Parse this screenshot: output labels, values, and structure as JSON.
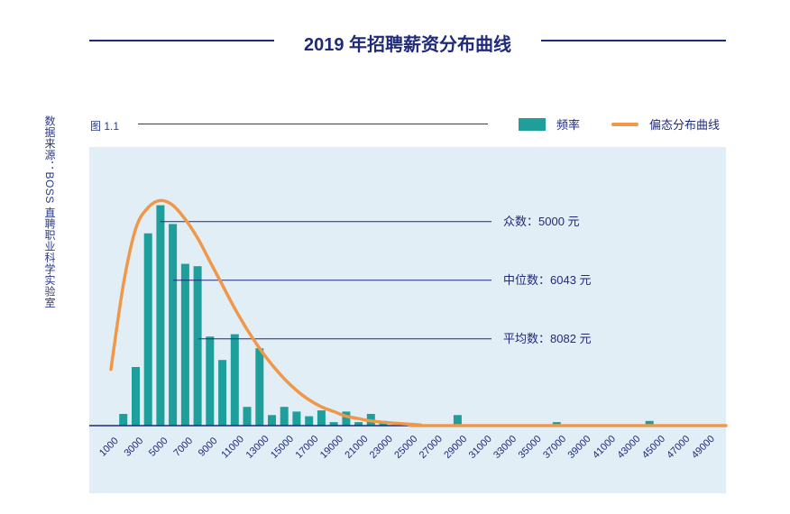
{
  "title": "2019 年招聘薪资分布曲线",
  "source": "数据来源：BOSS 直聘职业科学实验室",
  "figure_label": "图 1.1",
  "legend": {
    "bar_label": "频率",
    "line_label": "偏态分布曲线"
  },
  "colors": {
    "bar": "#1f9f9c",
    "curve": "#f0984a",
    "accent": "#1f2a7a",
    "plot_bg": "#e1eef6"
  },
  "chart_data": {
    "type": "bar",
    "x_tick_labels": [
      "1000",
      "3000",
      "5000",
      "7000",
      "9000",
      "11000",
      "13000",
      "15000",
      "17000",
      "19000",
      "21000",
      "23000",
      "25000",
      "27000",
      "29000",
      "31000",
      "33000",
      "35000",
      "37000",
      "39000",
      "41000",
      "43000",
      "45000",
      "47000",
      "49000"
    ],
    "bars": [
      {
        "x": 2000,
        "value": 5
      },
      {
        "x": 3000,
        "value": 25
      },
      {
        "x": 4000,
        "value": 82
      },
      {
        "x": 5000,
        "value": 94
      },
      {
        "x": 6000,
        "value": 86
      },
      {
        "x": 7000,
        "value": 69
      },
      {
        "x": 8000,
        "value": 68
      },
      {
        "x": 9000,
        "value": 38
      },
      {
        "x": 10000,
        "value": 28
      },
      {
        "x": 11000,
        "value": 39
      },
      {
        "x": 12000,
        "value": 8
      },
      {
        "x": 13000,
        "value": 33
      },
      {
        "x": 14000,
        "value": 4.5
      },
      {
        "x": 15000,
        "value": 8
      },
      {
        "x": 16000,
        "value": 6
      },
      {
        "x": 17000,
        "value": 4
      },
      {
        "x": 18000,
        "value": 6.5
      },
      {
        "x": 19000,
        "value": 1.5
      },
      {
        "x": 20000,
        "value": 6
      },
      {
        "x": 21000,
        "value": 1.5
      },
      {
        "x": 22000,
        "value": 5
      },
      {
        "x": 23000,
        "value": 2
      },
      {
        "x": 25000,
        "value": 1
      },
      {
        "x": 29000,
        "value": 4.5
      },
      {
        "x": 37000,
        "value": 1.5
      },
      {
        "x": 44500,
        "value": 2
      }
    ],
    "curve": [
      {
        "x": 1000,
        "y": 24
      },
      {
        "x": 2000,
        "y": 60
      },
      {
        "x": 3000,
        "y": 84
      },
      {
        "x": 4000,
        "y": 93
      },
      {
        "x": 5000,
        "y": 96
      },
      {
        "x": 6000,
        "y": 94
      },
      {
        "x": 7000,
        "y": 88
      },
      {
        "x": 8000,
        "y": 80
      },
      {
        "x": 9000,
        "y": 70
      },
      {
        "x": 10000,
        "y": 60
      },
      {
        "x": 11000,
        "y": 50
      },
      {
        "x": 12000,
        "y": 41
      },
      {
        "x": 13000,
        "y": 33
      },
      {
        "x": 14000,
        "y": 26
      },
      {
        "x": 15000,
        "y": 20
      },
      {
        "x": 16000,
        "y": 15
      },
      {
        "x": 17000,
        "y": 11
      },
      {
        "x": 18000,
        "y": 8
      },
      {
        "x": 19000,
        "y": 6
      },
      {
        "x": 20000,
        "y": 4
      },
      {
        "x": 21000,
        "y": 3
      },
      {
        "x": 22000,
        "y": 2
      },
      {
        "x": 24000,
        "y": 1
      },
      {
        "x": 26000,
        "y": 0.3
      },
      {
        "x": 27000,
        "y": 0
      },
      {
        "x": 49000,
        "y": 0
      }
    ],
    "annotations": [
      {
        "x": 5000,
        "y_level": 87,
        "label": "众数：5000 元"
      },
      {
        "x": 6043,
        "y_level": 62,
        "label": "中位数：6043 元"
      },
      {
        "x": 8082,
        "y_level": 37,
        "label": "平均数：8082 元"
      }
    ],
    "xlim": [
      1000,
      49000
    ],
    "ylim": [
      0,
      100
    ],
    "grid": false,
    "legend_position": "top-right"
  }
}
